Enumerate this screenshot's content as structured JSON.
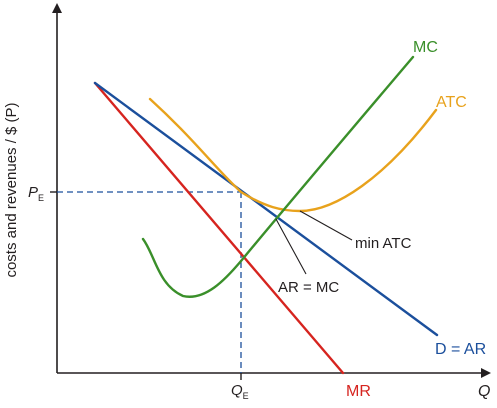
{
  "axes": {
    "y_label": "costs and revenues / $ (P)",
    "x_label": "Q"
  },
  "markers": {
    "price_main": "P",
    "price_sub": "E",
    "quantity_main": "Q",
    "quantity_sub": "E"
  },
  "curves": {
    "mc": {
      "label": "MC",
      "color": "#3a8f2a"
    },
    "atc": {
      "label": "ATC",
      "color": "#e8a21c"
    },
    "demand": {
      "label": "D = AR",
      "color": "#1b4f9c"
    },
    "mr": {
      "label": "MR",
      "color": "#d6241f"
    }
  },
  "annotations": {
    "min_atc": "min ATC",
    "ar_mc": "AR = MC"
  },
  "colors": {
    "axis": "#231f20",
    "guide": "#1b4f9c",
    "annotation_line": "#231f20"
  }
}
